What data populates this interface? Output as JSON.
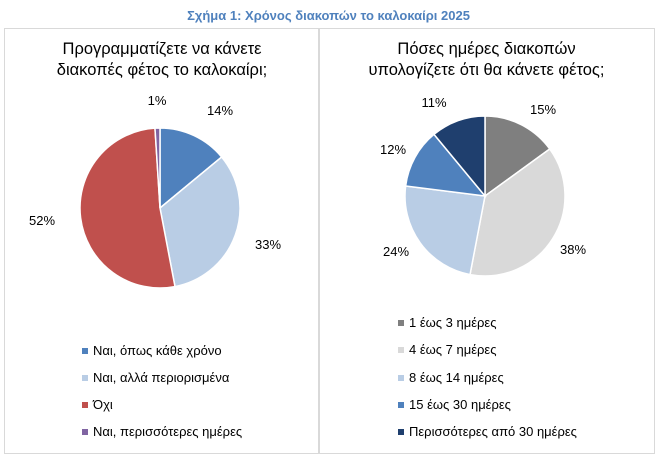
{
  "figure_title": "Σχήμα 1: Χρόνος διακοπών το καλοκαίρι 2025",
  "chart_data": [
    {
      "type": "pie",
      "title_lines": [
        "Προγραμματίζετε να κάνετε",
        "διακοπές φέτος το καλοκαίρι;"
      ],
      "categories": [
        "Ναι, όπως κάθε χρόνο",
        "Ναι, αλλά περιορισμένα",
        "Όχι",
        "Ναι, περισσότερες ημέρες"
      ],
      "values": [
        14,
        33,
        52,
        1
      ],
      "labels": [
        "14%",
        "33%",
        "52%",
        "1%"
      ],
      "colors": [
        "#4f81bd",
        "#b9cde5",
        "#c0504d",
        "#8064a2"
      ],
      "legend": "bottom"
    },
    {
      "type": "pie",
      "title_lines": [
        "Πόσες ημέρες διακοπών",
        "υπολογίζετε ότι θα κάνετε φέτος;"
      ],
      "categories": [
        "1 έως 3 ημέρες",
        "4 έως 7 ημέρες",
        "8 έως 14 ημέρες",
        "15 έως 30 ημέρες",
        "Περισσότερες από 30 ημέρες"
      ],
      "values": [
        15,
        38,
        24,
        12,
        11
      ],
      "labels": [
        "15%",
        "38%",
        "24%",
        "12%",
        "11%"
      ],
      "colors": [
        "#7f7f7f",
        "#d9d9d9",
        "#b9cde5",
        "#4f81bd",
        "#1f3f6e"
      ],
      "legend": "bottom"
    }
  ]
}
